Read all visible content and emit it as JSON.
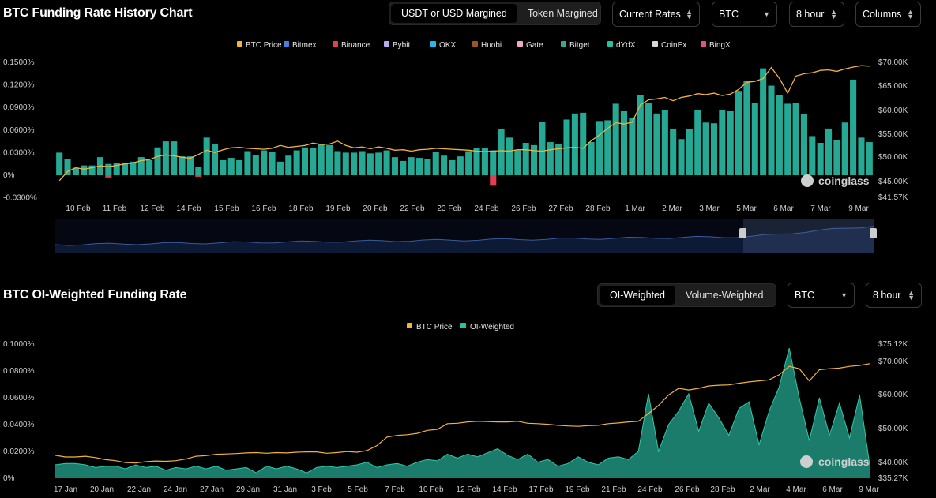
{
  "top": {
    "title": "BTC Funding Rate History Chart",
    "margin_toggle": [
      {
        "label": "USDT or USD Margined",
        "active": true
      },
      {
        "label": "Token Margined",
        "active": false
      }
    ],
    "rate_select": "Current Rates",
    "coin_select": "BTC",
    "interval_select": "8 hour",
    "type_select": "Columns"
  },
  "bottom": {
    "title": "BTC OI-Weighted Funding Rate",
    "weight_toggle": [
      {
        "label": "OI-Weighted",
        "active": true
      },
      {
        "label": "Volume-Weighted",
        "active": false
      }
    ],
    "coin_select": "BTC",
    "interval_select": "8 hour"
  },
  "watermark": "coinglass",
  "colors": {
    "price": "#f0b43c",
    "dydx": "#25a994",
    "binance": "#e04050",
    "navigator": "#3a5a9a"
  },
  "chart_data": [
    {
      "type": "bar",
      "legend": [
        {
          "name": "BTC Price",
          "color": "#f0b43c"
        },
        {
          "name": "Bitmex",
          "color": "#4a7fe0"
        },
        {
          "name": "Binance",
          "color": "#e04050"
        },
        {
          "name": "Bybit",
          "color": "#b8a8f0"
        },
        {
          "name": "OKX",
          "color": "#2ab8e8"
        },
        {
          "name": "Huobi",
          "color": "#a0522d"
        },
        {
          "name": "Gate",
          "color": "#f0a8c8"
        },
        {
          "name": "Bitget",
          "color": "#3aa890"
        },
        {
          "name": "dYdX",
          "color": "#25c4a0"
        },
        {
          "name": "CoinEx",
          "color": "#d8d8d8"
        },
        {
          "name": "BingX",
          "color": "#e0508a"
        }
      ],
      "x_ticks": [
        "10 Feb",
        "11 Feb",
        "12 Feb",
        "14 Feb",
        "15 Feb",
        "16 Feb",
        "18 Feb",
        "19 Feb",
        "20 Feb",
        "22 Feb",
        "23 Feb",
        "24 Feb",
        "26 Feb",
        "27 Feb",
        "28 Feb",
        "1 Mar",
        "2 Mar",
        "3 Mar",
        "5 Mar",
        "6 Mar",
        "7 Mar",
        "9 Mar"
      ],
      "y_left_ticks": [
        "0.1500%",
        "0.1200%",
        "0.0900%",
        "0.0600%",
        "0.0300%",
        "0%",
        "-0.0300%"
      ],
      "y_right_ticks": [
        "$70.00K",
        "$65.00K",
        "$60.00K",
        "$55.00K",
        "$50.00K",
        "$45.00K",
        "$41.57K"
      ],
      "ylim": [
        -0.03,
        0.15
      ],
      "price_lim": [
        41.57,
        70.0
      ],
      "series": [
        {
          "name": "dYdX",
          "values": [
            0.03,
            0.022,
            0.01,
            0.013,
            0.013,
            0.024,
            0.015,
            0.016,
            0.016,
            0.018,
            0.024,
            0.02,
            0.037,
            0.045,
            0.045,
            0.025,
            0.025,
            0.011,
            0.05,
            0.042,
            0.02,
            0.023,
            0.02,
            0.032,
            0.027,
            0.033,
            0.031,
            0.018,
            0.026,
            0.033,
            0.037,
            0.036,
            0.041,
            0.04,
            0.032,
            0.03,
            0.03,
            0.032,
            0.029,
            0.03,
            0.033,
            0.024,
            0.019,
            0.024,
            0.023,
            0.021,
            0.031,
            0.026,
            0.02,
            0.025,
            0.032,
            0.036,
            0.036,
            0.033,
            0.061,
            0.05,
            0.033,
            0.043,
            0.04,
            0.071,
            0.044,
            0.042,
            0.074,
            0.082,
            0.083,
            0.044,
            0.072,
            0.073,
            0.095,
            0.085,
            0.076,
            0.106,
            0.096,
            0.082,
            0.086,
            0.061,
            0.048,
            0.061,
            0.086,
            0.07,
            0.069,
            0.086,
            0.085,
            0.112,
            0.125,
            0.096,
            0.142,
            0.119,
            0.106,
            0.095,
            0.096,
            0.081,
            0.052,
            0.043,
            0.062,
            0.047,
            0.07,
            0.127,
            0.05,
            0.044
          ]
        },
        {
          "name": "Binance",
          "values": [
            0,
            0,
            0,
            0,
            0,
            0,
            -0.003,
            0,
            0,
            0,
            0,
            0,
            0,
            0,
            0,
            0,
            0,
            -0.002,
            0,
            0,
            0,
            0,
            0,
            0,
            0,
            0,
            0,
            0,
            0,
            0,
            0,
            0,
            0,
            0,
            0,
            0,
            0,
            0,
            0,
            0,
            0,
            0,
            0,
            0,
            0,
            0,
            0,
            0,
            0,
            0,
            0,
            0,
            0,
            -0.014,
            0,
            0,
            0,
            0,
            0,
            0,
            0,
            0,
            0,
            0,
            0,
            0,
            0,
            0,
            0,
            0,
            0,
            0,
            0,
            0,
            0,
            0,
            0,
            0,
            0,
            0,
            0,
            0,
            0,
            0,
            0,
            0,
            0,
            0,
            0,
            0,
            0,
            0,
            0,
            0,
            0,
            0,
            0,
            0,
            0,
            0
          ]
        },
        {
          "name": "BTC Price",
          "axis": "right",
          "values": [
            45.1,
            47.0,
            47.8,
            47.5,
            47.8,
            48.2,
            48.0,
            48.3,
            48.6,
            48.8,
            49.3,
            49.5,
            50.2,
            50.5,
            50.3,
            50.0,
            49.8,
            50.6,
            51.5,
            51.0,
            51.6,
            52.0,
            52.1,
            51.9,
            51.8,
            51.7,
            51.9,
            52.5,
            52.1,
            52.3,
            52.5,
            53.0,
            52.7,
            52.8,
            53.4,
            52.5,
            52.0,
            52.2,
            51.8,
            52.2,
            51.9,
            51.5,
            51.6,
            51.3,
            51.6,
            51.7,
            51.9,
            51.8,
            51.7,
            51.6,
            51.5,
            51.3,
            51.2,
            51.3,
            51.4,
            51.3,
            51.6,
            51.6,
            51.4,
            51.3,
            51.6,
            51.8,
            52.0,
            52.1,
            51.9,
            53.5,
            54.7,
            56.1,
            57.3,
            57.0,
            57.4,
            61.0,
            62.1,
            62.3,
            62.6,
            61.9,
            62.6,
            62.9,
            63.4,
            63.2,
            63.5,
            63.0,
            63.3,
            64.3,
            65.8,
            66.0,
            66.6,
            68.9,
            66.6,
            63.5,
            67.1,
            67.6,
            67.8,
            68.3,
            68.4,
            68.1,
            68.6,
            69.0,
            69.3,
            69.2
          ]
        }
      ]
    },
    {
      "type": "area",
      "legend": [
        {
          "name": "BTC Price",
          "color": "#f0b43c"
        },
        {
          "name": "OI-Weighted",
          "color": "#25c4a0"
        }
      ],
      "x_ticks": [
        "17 Jan",
        "20 Jan",
        "22 Jan",
        "24 Jan",
        "27 Jan",
        "29 Jan",
        "31 Jan",
        "3 Feb",
        "5 Feb",
        "7 Feb",
        "10 Feb",
        "12 Feb",
        "14 Feb",
        "17 Feb",
        "19 Feb",
        "21 Feb",
        "24 Feb",
        "26 Feb",
        "28 Feb",
        "2 Mar",
        "4 Mar",
        "6 Mar",
        "9 Mar"
      ],
      "y_left_ticks": [
        "0.1000%",
        "0.0800%",
        "0.0600%",
        "0.0400%",
        "0.0200%",
        "0%"
      ],
      "y_right_ticks": [
        "$75.12K",
        "$70.00K",
        "$60.00K",
        "$50.00K",
        "$40.00K",
        "$35.27K"
      ],
      "ylim": [
        0,
        0.1
      ],
      "price_lim": [
        35.27,
        75.12
      ],
      "series": [
        {
          "name": "OI-Weighted",
          "values": [
            0.01,
            0.011,
            0.011,
            0.01,
            0.008,
            0.009,
            0.009,
            0.007,
            0.01,
            0.008,
            0.009,
            0.006,
            0.008,
            0.007,
            0.009,
            0.007,
            0.009,
            0.006,
            0.007,
            0.008,
            0.004,
            0.009,
            0.007,
            0.009,
            0.007,
            0.004,
            0.008,
            0.009,
            0.008,
            0.009,
            0.01,
            0.012,
            0.008,
            0.01,
            0.011,
            0.009,
            0.012,
            0.014,
            0.013,
            0.018,
            0.015,
            0.018,
            0.016,
            0.019,
            0.022,
            0.017,
            0.014,
            0.018,
            0.012,
            0.014,
            0.009,
            0.011,
            0.016,
            0.012,
            0.01,
            0.015,
            0.016,
            0.014,
            0.02,
            0.063,
            0.02,
            0.04,
            0.05,
            0.063,
            0.035,
            0.056,
            0.045,
            0.032,
            0.052,
            0.057,
            0.025,
            0.05,
            0.068,
            0.097,
            0.06,
            0.028,
            0.06,
            0.032,
            0.056,
            0.03,
            0.062,
            0.01
          ]
        },
        {
          "name": "BTC Price",
          "axis": "right",
          "values": [
            42.1,
            41.6,
            41.6,
            41.8,
            41.4,
            40.8,
            40.5,
            39.9,
            39.8,
            40.2,
            40.4,
            40.3,
            40.5,
            41.0,
            41.8,
            42.0,
            42.4,
            42.5,
            42.6,
            42.8,
            42.9,
            42.7,
            42.9,
            42.8,
            43.0,
            43.1,
            43.1,
            42.7,
            42.9,
            43.2,
            43.0,
            43.5,
            45.0,
            47.5,
            48.0,
            48.2,
            48.6,
            49.5,
            49.8,
            51.5,
            51.6,
            52.0,
            52.2,
            52.1,
            52.0,
            52.0,
            52.2,
            51.6,
            51.5,
            51.3,
            51.0,
            50.8,
            50.7,
            50.9,
            51.0,
            51.5,
            51.7,
            52.0,
            52.2,
            54.5,
            56.9,
            60.0,
            62.0,
            61.5,
            62.0,
            62.7,
            62.9,
            63.0,
            63.5,
            63.9,
            64.2,
            64.5,
            66.0,
            68.5,
            67.8,
            64.2,
            67.5,
            67.8,
            68.0,
            68.5,
            68.8,
            69.3
          ]
        }
      ]
    }
  ]
}
